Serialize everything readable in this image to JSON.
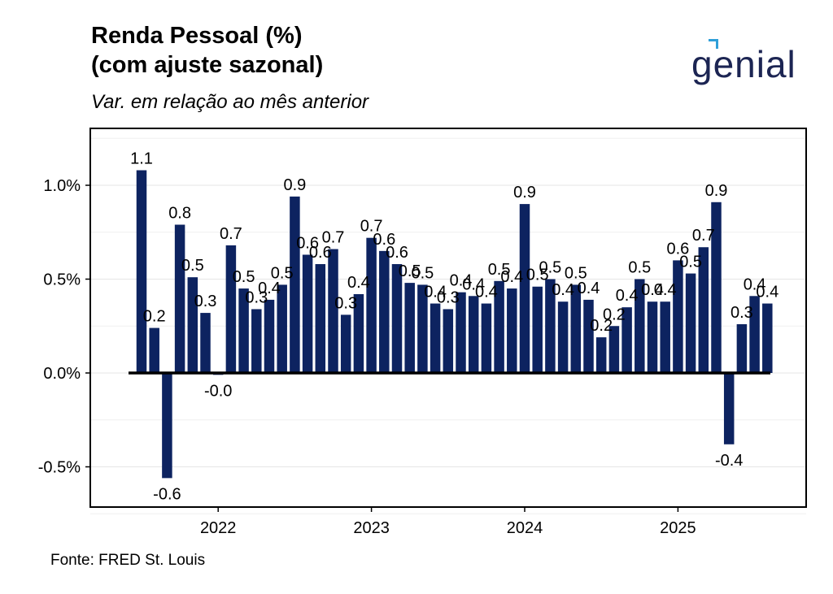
{
  "header": {
    "title_line1": "Renda Pessoal (%)",
    "title_line2": "(com ajuste sazonal)",
    "subtitle": "Var. em relação ao mês anterior",
    "logo_text": "genial"
  },
  "footer": {
    "source": "Fonte: FRED St. Louis"
  },
  "colors": {
    "bar": "#0d2360",
    "zero_line": "#000000",
    "logo": "#1c2553",
    "logo_accent": "#2f9fd8"
  },
  "chart_data": {
    "type": "bar",
    "title": "Renda Pessoal (%) (com ajuste sazonal)",
    "subtitle": "Var. em relação ao mês anterior",
    "xlabel": "",
    "ylabel": "",
    "ylim": [
      -0.7,
      1.25
    ],
    "yticks": [
      -0.5,
      0.0,
      0.5,
      1.0
    ],
    "ytick_labels": [
      "-0.5%",
      "0.0%",
      "0.5%",
      "1.0%"
    ],
    "xticks": [
      "2022",
      "2023",
      "2024",
      "2025"
    ],
    "grid": true,
    "x": [
      "2021-07",
      "2021-08",
      "2021-09",
      "2021-10",
      "2021-11",
      "2021-12",
      "2022-01",
      "2022-02",
      "2022-03",
      "2022-04",
      "2022-05",
      "2022-06",
      "2022-07",
      "2022-08",
      "2022-09",
      "2022-10",
      "2022-11",
      "2022-12",
      "2023-01",
      "2023-02",
      "2023-03",
      "2023-04",
      "2023-05",
      "2023-06",
      "2023-07",
      "2023-08",
      "2023-09",
      "2023-10",
      "2023-11",
      "2023-12",
      "2024-01",
      "2024-02",
      "2024-03",
      "2024-04",
      "2024-05",
      "2024-06",
      "2024-07",
      "2024-08",
      "2024-09",
      "2024-10",
      "2024-11",
      "2024-12",
      "2025-01",
      "2025-02",
      "2025-03",
      "2025-04",
      "2025-05",
      "2025-06",
      "2025-07",
      "2025-08"
    ],
    "values": [
      1.08,
      0.24,
      -0.56,
      0.79,
      0.51,
      0.32,
      -0.01,
      0.68,
      0.45,
      0.34,
      0.39,
      0.47,
      0.94,
      0.63,
      0.58,
      0.66,
      0.31,
      0.42,
      0.72,
      0.65,
      0.58,
      0.48,
      0.47,
      0.37,
      0.34,
      0.43,
      0.41,
      0.37,
      0.49,
      0.45,
      0.9,
      0.46,
      0.5,
      0.38,
      0.47,
      0.39,
      0.19,
      0.25,
      0.35,
      0.5,
      0.38,
      0.38,
      0.6,
      0.53,
      0.67,
      0.91,
      -0.38,
      0.26,
      0.41,
      0.37
    ],
    "labels": [
      "1.1",
      "0.2",
      "-0.6",
      "0.8",
      "0.5",
      "0.3",
      "-0.0",
      "0.7",
      "0.5",
      "0.3",
      "0.4",
      "0.5",
      "0.9",
      "0.6",
      "0.6",
      "0.7",
      "0.3",
      "0.4",
      "0.7",
      "0.6",
      "0.6",
      "0.5",
      "0.5",
      "0.4",
      "0.3",
      "0.4",
      "0.4",
      "0.4",
      "0.5",
      "0.4",
      "0.9",
      "0.5",
      "0.5",
      "0.4",
      "0.5",
      "0.4",
      "0.2",
      "0.2",
      "0.4",
      "0.5",
      "0.4",
      "0.4",
      "0.6",
      "0.5",
      "0.7",
      "0.9",
      "-0.4",
      "0.3",
      "0.4",
      "0.4"
    ]
  }
}
